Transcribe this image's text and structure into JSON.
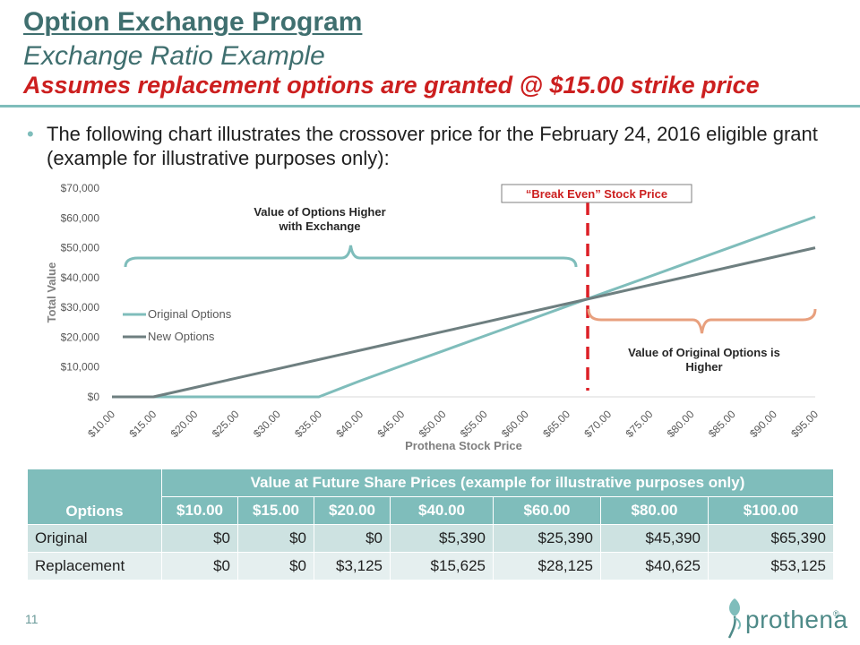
{
  "header": {
    "title": "Option Exchange Program",
    "subtitle": "Exchange Ratio Example",
    "assumption": "Assumes replacement options are granted @ $15.00 strike price"
  },
  "bullet": {
    "text": "The following chart illustrates the crossover price for the February 24, 2016 eligible grant (example for illustrative purposes only):"
  },
  "chart_data": {
    "type": "line",
    "xlabel": "Prothena Stock Price",
    "ylabel": "Total Value",
    "x": [
      10,
      15,
      20,
      25,
      30,
      35,
      40,
      45,
      50,
      55,
      60,
      65,
      70,
      75,
      80,
      85,
      90,
      95
    ],
    "x_tick_labels": [
      "$10.00",
      "$15.00",
      "$20.00",
      "$25.00",
      "$30.00",
      "$35.00",
      "$40.00",
      "$45.00",
      "$50.00",
      "$55.00",
      "$60.00",
      "$65.00",
      "$70.00",
      "$75.00",
      "$80.00",
      "$85.00",
      "$90.00",
      "$95.00"
    ],
    "y_ticks": [
      0,
      10000,
      20000,
      30000,
      40000,
      50000,
      60000,
      70000
    ],
    "y_tick_labels": [
      "$0",
      "$10,000",
      "$20,000",
      "$30,000",
      "$40,000",
      "$50,000",
      "$60,000",
      "$70,000"
    ],
    "ylim": [
      0,
      70000
    ],
    "grid": false,
    "legend_position": "left",
    "series": [
      {
        "name": "Original Options",
        "color": "#7fbdbb",
        "values": [
          0,
          0,
          0,
          0,
          0,
          0,
          5390,
          10390,
          15390,
          20390,
          25390,
          30390,
          35390,
          40390,
          45390,
          50390,
          55390,
          60390
        ]
      },
      {
        "name": "New Options",
        "color": "#6e7f80",
        "values": [
          0,
          0,
          3125,
          6250,
          9375,
          12500,
          15625,
          18750,
          21875,
          25000,
          28125,
          31250,
          34375,
          37500,
          40625,
          43750,
          46875,
          50000
        ]
      }
    ],
    "break_even_x": 67.5,
    "annotations": {
      "break_even": "“Break Even” Stock Price",
      "higher_exchange": [
        "Value of Options Higher",
        "with Exchange"
      ],
      "higher_original": [
        "Value of Original Options is",
        "Higher"
      ]
    },
    "colors": {
      "break_even_line": "#dd1f26",
      "left_brace": "#7fbdbb",
      "right_brace": "#e8a07e",
      "axis_text": "#595959",
      "axis_title": "#7f7f7f"
    }
  },
  "table": {
    "group_header": "Value at Future Share Prices (example for illustrative purposes only)",
    "options_header": "Options",
    "price_headers": [
      "$10.00",
      "$15.00",
      "$20.00",
      "$40.00",
      "$60.00",
      "$80.00",
      "$100.00"
    ],
    "rows": [
      {
        "label": "Original",
        "values": [
          "$0",
          "$0",
          "$0",
          "$5,390",
          "$25,390",
          "$45,390",
          "$65,390"
        ]
      },
      {
        "label": "Replacement",
        "values": [
          "$0",
          "$0",
          "$3,125",
          "$15,625",
          "$28,125",
          "$40,625",
          "$53,125"
        ]
      }
    ]
  },
  "footer": {
    "page_number": "11",
    "logo_text": "prothena",
    "logo_mark": "®",
    "logo_icon": "prothena-leaf-icon"
  }
}
